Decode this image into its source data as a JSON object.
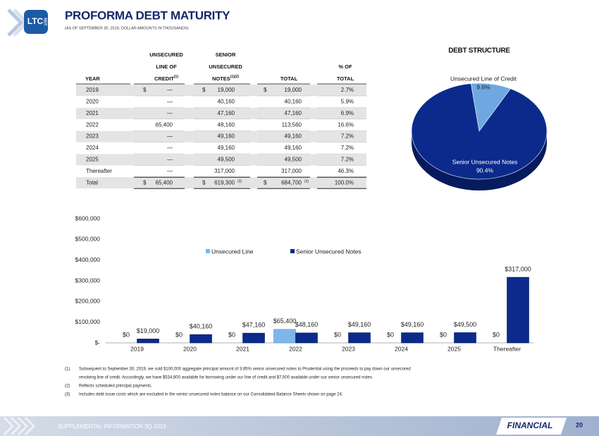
{
  "logo": {
    "text": "LTC",
    "sub": "REIT"
  },
  "header": {
    "title": "PROFORMA DEBT MATURITY",
    "subtitle": "(AS OF SEPTEMBER 30, 2019, DOLLAR AMOUNTS IN THOUSANDS)"
  },
  "table": {
    "columns": [
      {
        "lines": [
          "YEAR"
        ]
      },
      {
        "lines": [
          "UNSECURED",
          "LINE OF",
          "CREDIT"
        ],
        "sup": "(1)"
      },
      {
        "lines": [
          "SENIOR",
          "UNSECURED",
          "NOTES"
        ],
        "sup": "(1)(2)"
      },
      {
        "lines": [
          "TOTAL"
        ]
      },
      {
        "lines": [
          "% OF",
          "TOTAL"
        ]
      }
    ],
    "rows": [
      {
        "cells": [
          "2019",
          "—",
          "19,000",
          "19,000",
          "2.7%"
        ],
        "currency": "$"
      },
      {
        "cells": [
          "2020",
          "—",
          "40,160",
          "40,160",
          "5.9%"
        ]
      },
      {
        "cells": [
          "2021",
          "—",
          "47,160",
          "47,160",
          "6.9%"
        ]
      },
      {
        "cells": [
          "2022",
          "65,400",
          "48,160",
          "113,560",
          "16.6%"
        ]
      },
      {
        "cells": [
          "2023",
          "—",
          "49,160",
          "49,160",
          "7.2%"
        ]
      },
      {
        "cells": [
          "2024",
          "—",
          "49,160",
          "49,160",
          "7.2%"
        ]
      },
      {
        "cells": [
          "2025",
          "—",
          "49,500",
          "49,500",
          "7.2%"
        ]
      },
      {
        "cells": [
          "Thereafter",
          "—",
          "317,000",
          "317,000",
          "46.3%"
        ]
      },
      {
        "cells": [
          "Total",
          "65,400",
          "619,300",
          "684,700",
          "100.0%"
        ],
        "currency": "$",
        "note": "(3)"
      }
    ]
  },
  "chart_data": [
    {
      "type": "pie",
      "title": "DEBT STRUCTURE",
      "categories": [
        "Unsecured Line of Credit",
        "Senior Unsecured Notes"
      ],
      "values": [
        9.6,
        90.4
      ],
      "value_labels": [
        "9.6%",
        "90.4%"
      ],
      "colors": [
        "#6fa8e0",
        "#0b2a8c"
      ]
    },
    {
      "type": "bar",
      "categories": [
        "2019",
        "2020",
        "2021",
        "2022",
        "2023",
        "2024",
        "2025",
        "Thereafter"
      ],
      "series": [
        {
          "name": "Unsecured Line",
          "color": "#7fb6ea",
          "values": [
            0,
            0,
            0,
            65400,
            0,
            0,
            0,
            0
          ],
          "value_labels": [
            "$0",
            "$0",
            "$0",
            "$65,400",
            "$0",
            "$0",
            "$0",
            "$0"
          ]
        },
        {
          "name": "Senior Unsecured Notes",
          "color": "#0b2a8c",
          "values": [
            19000,
            40160,
            47160,
            48160,
            49160,
            49160,
            49500,
            317000
          ],
          "value_labels": [
            "$19,000",
            "$40,160",
            "$47,160",
            "$48,160",
            "$49,160",
            "$49,160",
            "$49,500",
            "$317,000"
          ]
        }
      ],
      "ylim": [
        0,
        600000
      ],
      "yticks": [
        {
          "value": 0,
          "label": "$-"
        },
        {
          "value": 100000,
          "label": "$100,000"
        },
        {
          "value": 200000,
          "label": "$200,000"
        },
        {
          "value": 300000,
          "label": "$300,000"
        },
        {
          "value": 400000,
          "label": "$400,000"
        },
        {
          "value": 500000,
          "label": "$500,000"
        },
        {
          "value": 600000,
          "label": "$600,000"
        }
      ],
      "legend": "top"
    }
  ],
  "footnotes": [
    {
      "marker": "(1)",
      "lines": [
        "Subsequent to September 30, 2019, we sold $100,000 aggregate principal amount of 3.85% senior unsecured notes to Prudential using the proceeds to pay down our unsecured",
        "revolving line of credit. Accordingly, we have $534,600 available for borrowing under our line of credit and $7,500 available under our senior unsecured notes."
      ]
    },
    {
      "marker": "(2)",
      "lines": [
        "Reflects scheduled principal payments."
      ]
    },
    {
      "marker": "(3)",
      "lines": [
        "Includes debt issue costs which are excluded in the senior unsecured notes balance on our Consolidated Balance Sheets shown on page 24."
      ]
    }
  ],
  "footer": {
    "left": "SUPPLEMENTAL INFORMATION 3Q 2019",
    "section": "FINANCIAL",
    "page": "20"
  }
}
